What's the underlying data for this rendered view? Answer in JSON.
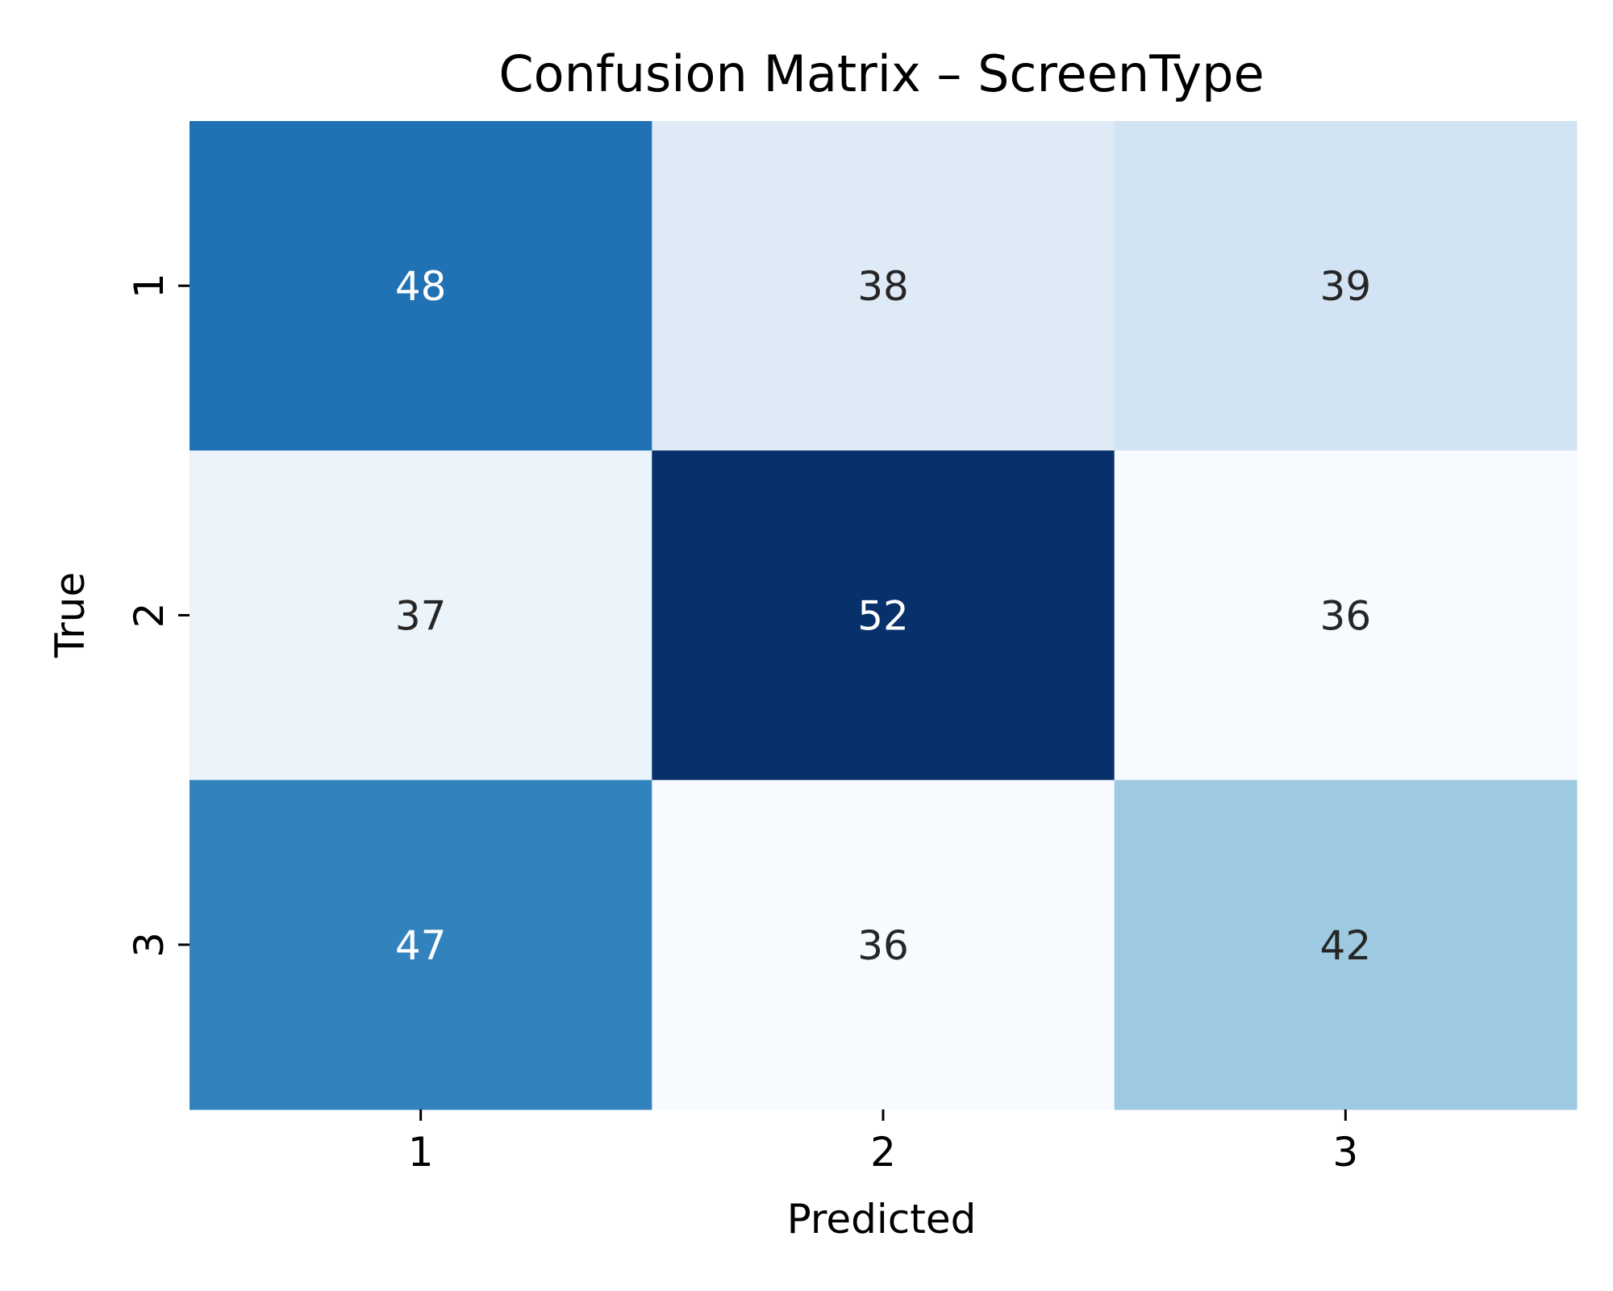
{
  "chart_data": {
    "type": "heatmap",
    "title": "Confusion Matrix – ScreenType",
    "xlabel": "Predicted",
    "ylabel": "True",
    "x_categories": [
      "1",
      "2",
      "3"
    ],
    "y_categories": [
      "1",
      "2",
      "3"
    ],
    "values": [
      [
        48,
        38,
        39
      ],
      [
        37,
        52,
        36
      ],
      [
        47,
        36,
        42
      ]
    ],
    "colormap": "Blues",
    "value_range": [
      36,
      52
    ],
    "colorbar": false,
    "annotate": true,
    "colors": {
      "min": "#f7fbff",
      "max": "#08306b",
      "text_dark": "#262626",
      "text_light": "#ffffff"
    }
  }
}
